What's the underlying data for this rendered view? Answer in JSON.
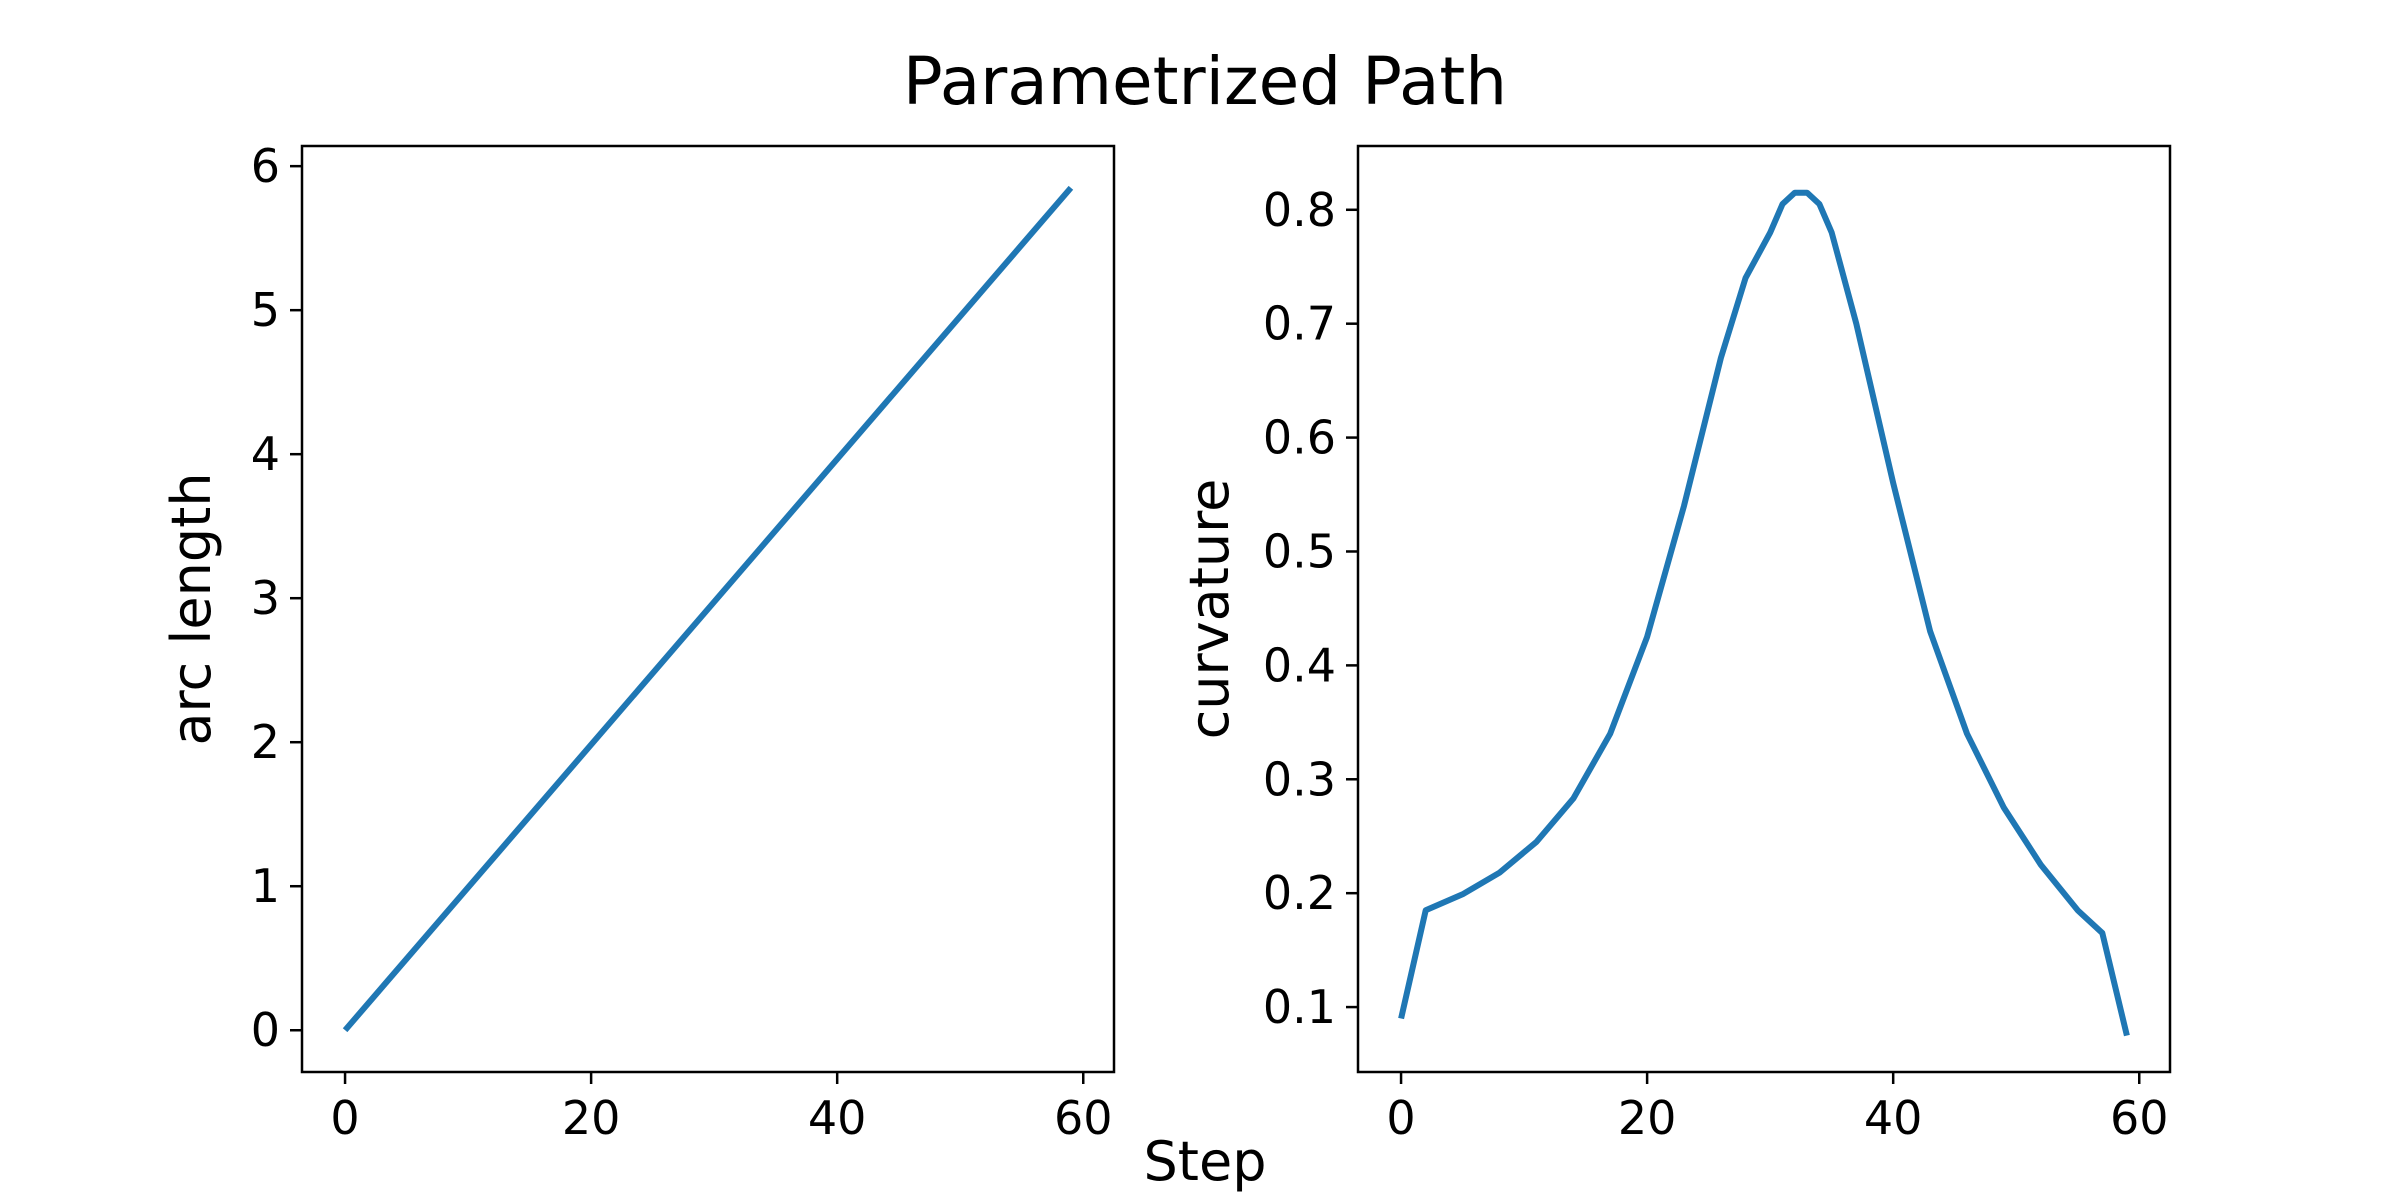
{
  "title": "Parametrized Path",
  "shared_xlabel": "Step",
  "colors": {
    "line": "#1f77b4"
  },
  "chart_data": [
    {
      "type": "line",
      "title": "",
      "xlabel": "Step",
      "ylabel": "arc length",
      "xlim": [
        -3.5,
        62.5
      ],
      "ylim": [
        -0.29,
        6.14
      ],
      "xticks": [
        0,
        20,
        40,
        60
      ],
      "yticks": [
        0,
        1,
        2,
        3,
        4,
        5,
        6
      ],
      "grid": false,
      "series": [
        {
          "color": "#1f77b4",
          "x": [
            0,
            59
          ],
          "y": [
            0.0,
            5.85
          ]
        }
      ]
    },
    {
      "type": "line",
      "title": "",
      "xlabel": "Step",
      "ylabel": "curvature",
      "xlim": [
        -3.5,
        62.5
      ],
      "ylim": [
        0.043,
        0.856
      ],
      "xticks": [
        0,
        20,
        40,
        60
      ],
      "yticks": [
        0.1,
        0.2,
        0.3,
        0.4,
        0.5,
        0.6,
        0.7,
        0.8
      ],
      "grid": false,
      "series": [
        {
          "color": "#1f77b4",
          "x": [
            0,
            2,
            5,
            8,
            11,
            14,
            17,
            20,
            23,
            26,
            28,
            30,
            31,
            32,
            33,
            34,
            35,
            37,
            40,
            43,
            46,
            49,
            52,
            55,
            57,
            58,
            59
          ],
          "y": [
            0.09,
            0.185,
            0.199,
            0.218,
            0.245,
            0.283,
            0.34,
            0.425,
            0.54,
            0.67,
            0.74,
            0.78,
            0.805,
            0.815,
            0.815,
            0.805,
            0.78,
            0.7,
            0.56,
            0.43,
            0.34,
            0.275,
            0.225,
            0.185,
            0.165,
            0.12,
            0.075
          ]
        }
      ]
    }
  ]
}
